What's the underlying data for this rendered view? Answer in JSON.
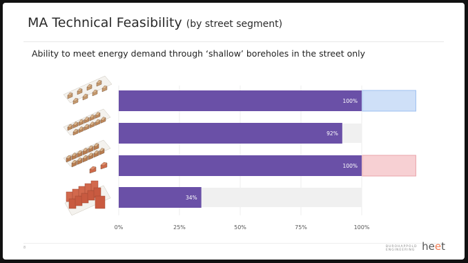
{
  "slide": {
    "title_main": "MA Technical Feasibility",
    "title_sub": "(by street segment)",
    "subtitle": "Ability to meet energy demand through ‘shallow’ boreholes in the street only",
    "page_number": "8",
    "footer_logo_text": "BUROHAPPOLD ENGINEERING",
    "brand_prefix": "he",
    "brand_accent": "e",
    "brand_suffix": "t"
  },
  "chart_data": {
    "type": "bar",
    "orientation": "horizontal",
    "categories": [
      "",
      "",
      "",
      ""
    ],
    "series": [
      {
        "values": [
          100,
          92,
          100,
          34
        ],
        "color": "#6a50a7"
      }
    ],
    "value_labels": [
      "100%",
      "92%",
      "100%",
      "34%"
    ],
    "track_color": "#f0f0f0",
    "extras": [
      {
        "row": 0,
        "value": 22,
        "color": "#cfe0f8",
        "border": "#9cbff0"
      },
      {
        "row": 2,
        "value": 22,
        "color": "#f7d0d3",
        "border": "#eaa4aa"
      }
    ],
    "x_ticks": [
      0,
      25,
      50,
      75,
      100
    ],
    "x_tick_labels": [
      "0%",
      "25%",
      "50%",
      "75%",
      "100%"
    ],
    "xlim": [
      0,
      100
    ],
    "row_icons": [
      "detached-houses-icon",
      "semi-detached-houses-icon",
      "terraced-houses-icon",
      "apartment-blocks-icon"
    ],
    "grid": true
  }
}
